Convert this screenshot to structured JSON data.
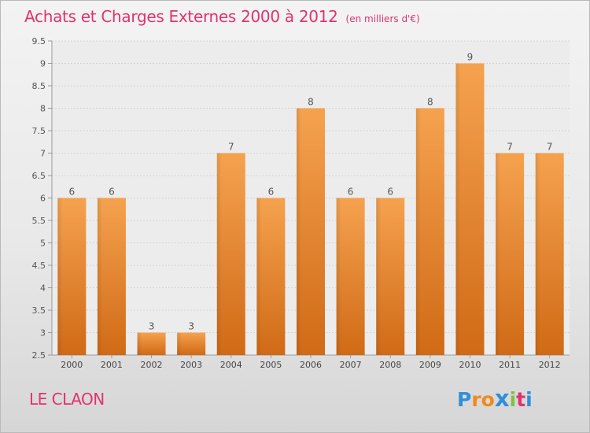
{
  "chart_data": {
    "type": "bar",
    "title": "Achats et Charges Externes 2000 à 2012",
    "unit_label": "(en milliers d'€)",
    "categories": [
      "2000",
      "2001",
      "2002",
      "2003",
      "2004",
      "2005",
      "2006",
      "2007",
      "2008",
      "2009",
      "2010",
      "2011",
      "2012"
    ],
    "values": [
      6,
      6,
      3,
      3,
      7,
      6,
      8,
      6,
      6,
      8,
      9,
      7,
      7
    ],
    "ylim": [
      2.5,
      9.5
    ],
    "yticks": [
      "2.5",
      "3",
      "3.5",
      "4",
      "4.5",
      "5",
      "5.5",
      "6",
      "6.5",
      "7",
      "7.5",
      "8",
      "8.5",
      "9",
      "9.5"
    ],
    "xlabel": "",
    "ylabel": "",
    "grid": true,
    "bar_color_top": "#f5a24f",
    "bar_color_bottom": "#d06a16"
  },
  "footer": {
    "location": "LE CLAON",
    "brand": "Proxiti",
    "brand_letters": [
      "P",
      "r",
      "o",
      "x",
      "i",
      "t",
      "i"
    ],
    "brand_colors": [
      "#2f8fd8",
      "#f08a1c",
      "#f08a1c",
      "#2f8fd8",
      "#7cc242",
      "#e0336e",
      "#2f8fd8"
    ]
  },
  "colors": {
    "accent_text": "#e0336e"
  }
}
